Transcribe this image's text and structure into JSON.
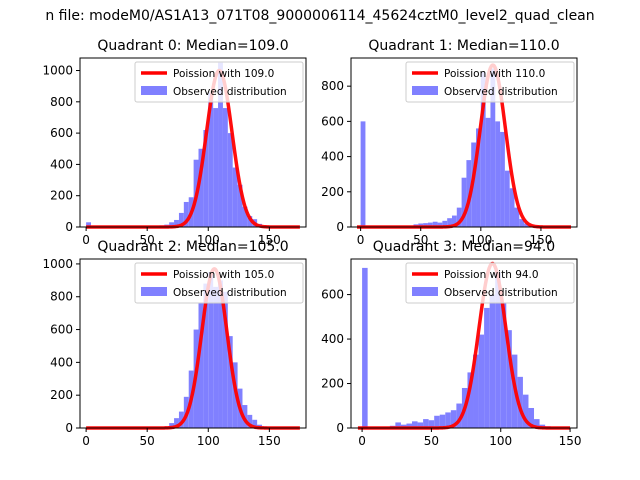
{
  "figure": {
    "suptitle": "n file: modeM0/AS1A13_071T08_9000006114_45624cztM0_level2_quad_clean"
  },
  "colors": {
    "poisson_line": "#ff0000",
    "histogram": "#8080ff"
  },
  "chart_data": [
    {
      "type": "bar",
      "title": "Quadrant 0: Median=109.0",
      "median": 109.0,
      "xlim": [
        -5,
        180
      ],
      "ylim": [
        0,
        1080
      ],
      "xticks": [
        0,
        50,
        100,
        150
      ],
      "yticks": [
        0,
        200,
        400,
        600,
        800,
        1000
      ],
      "legend": {
        "placement": "upper right",
        "entries": [
          "Poission with 109.0",
          "Observed distribution"
        ]
      },
      "series": [
        {
          "name": "Poission with 109.0",
          "kind": "line",
          "mean": 109.0,
          "peak": 1000
        },
        {
          "name": "Observed distribution",
          "kind": "histogram",
          "bin_width": 4,
          "bins": [
            [
              0,
              30
            ],
            [
              60,
              10
            ],
            [
              64,
              15
            ],
            [
              68,
              30
            ],
            [
              72,
              45
            ],
            [
              76,
              90
            ],
            [
              80,
              160
            ],
            [
              84,
              190
            ],
            [
              88,
              430
            ],
            [
              92,
              500
            ],
            [
              96,
              620
            ],
            [
              100,
              860
            ],
            [
              104,
              760
            ],
            [
              108,
              1050
            ],
            [
              112,
              760
            ],
            [
              116,
              600
            ],
            [
              120,
              380
            ],
            [
              124,
              270
            ],
            [
              128,
              130
            ],
            [
              132,
              70
            ],
            [
              136,
              50
            ],
            [
              140,
              20
            ],
            [
              144,
              10
            ],
            [
              148,
              5
            ]
          ]
        }
      ]
    },
    {
      "type": "bar",
      "title": "Quadrant 1: Median=110.0",
      "median": 110.0,
      "xlim": [
        -8,
        180
      ],
      "ylim": [
        0,
        960
      ],
      "xticks": [
        0,
        50,
        100,
        150
      ],
      "yticks": [
        0,
        200,
        400,
        600,
        800
      ],
      "legend": {
        "placement": "upper right",
        "entries": [
          "Poission with 110.0",
          "Observed distribution"
        ]
      },
      "series": [
        {
          "name": "Poission with 110.0",
          "kind": "line",
          "mean": 110.0,
          "peak": 920
        },
        {
          "name": "Observed distribution",
          "kind": "histogram",
          "bin_width": 4,
          "bins": [
            [
              0,
              600
            ],
            [
              44,
              15
            ],
            [
              48,
              20
            ],
            [
              52,
              22
            ],
            [
              56,
              25
            ],
            [
              60,
              30
            ],
            [
              64,
              25
            ],
            [
              68,
              35
            ],
            [
              72,
              50
            ],
            [
              76,
              65
            ],
            [
              80,
              110
            ],
            [
              84,
              280
            ],
            [
              88,
              380
            ],
            [
              92,
              480
            ],
            [
              96,
              560
            ],
            [
              100,
              880
            ],
            [
              104,
              620
            ],
            [
              108,
              900
            ],
            [
              112,
              600
            ],
            [
              116,
              540
            ],
            [
              120,
              320
            ],
            [
              124,
              220
            ],
            [
              128,
              110
            ],
            [
              132,
              45
            ],
            [
              136,
              20
            ],
            [
              140,
              10
            ]
          ]
        }
      ]
    },
    {
      "type": "bar",
      "title": "Quadrant 2: Median=105.0",
      "median": 105.0,
      "xlim": [
        -5,
        180
      ],
      "ylim": [
        0,
        1030
      ],
      "xticks": [
        0,
        50,
        100,
        150
      ],
      "yticks": [
        0,
        200,
        400,
        600,
        800,
        1000
      ],
      "legend": {
        "placement": "upper right",
        "entries": [
          "Poission with 105.0",
          "Observed distribution"
        ]
      },
      "series": [
        {
          "name": "Poission with 105.0",
          "kind": "line",
          "mean": 105.0,
          "peak": 970
        },
        {
          "name": "Observed distribution",
          "kind": "histogram",
          "bin_width": 4,
          "bins": [
            [
              64,
              10
            ],
            [
              68,
              30
            ],
            [
              72,
              60
            ],
            [
              76,
              100
            ],
            [
              80,
              190
            ],
            [
              84,
              350
            ],
            [
              88,
              600
            ],
            [
              92,
              760
            ],
            [
              96,
              880
            ],
            [
              100,
              950
            ],
            [
              104,
              860
            ],
            [
              108,
              900
            ],
            [
              112,
              830
            ],
            [
              116,
              560
            ],
            [
              120,
              400
            ],
            [
              124,
              240
            ],
            [
              128,
              140
            ],
            [
              132,
              80
            ],
            [
              136,
              50
            ],
            [
              140,
              20
            ],
            [
              144,
              10
            ]
          ]
        }
      ]
    },
    {
      "type": "bar",
      "title": "Quadrant 3: Median=94.0",
      "median": 94.0,
      "xlim": [
        -8,
        155
      ],
      "ylim": [
        0,
        760
      ],
      "xticks": [
        0,
        50,
        100,
        150
      ],
      "yticks": [
        0,
        200,
        400,
        600
      ],
      "legend": {
        "placement": "upper right",
        "entries": [
          "Poission with 94.0",
          "Observed distribution"
        ]
      },
      "series": [
        {
          "name": "Poission with 94.0",
          "kind": "line",
          "mean": 94.0,
          "peak": 740
        },
        {
          "name": "Observed distribution",
          "kind": "histogram",
          "bin_width": 4,
          "bins": [
            [
              0,
              720
            ],
            [
              20,
              10
            ],
            [
              24,
              25
            ],
            [
              28,
              15
            ],
            [
              32,
              20
            ],
            [
              36,
              30
            ],
            [
              40,
              25
            ],
            [
              44,
              40
            ],
            [
              48,
              35
            ],
            [
              52,
              55
            ],
            [
              56,
              60
            ],
            [
              60,
              70
            ],
            [
              64,
              80
            ],
            [
              68,
              110
            ],
            [
              72,
              180
            ],
            [
              76,
              250
            ],
            [
              80,
              330
            ],
            [
              84,
              420
            ],
            [
              88,
              540
            ],
            [
              92,
              600
            ],
            [
              96,
              700
            ],
            [
              100,
              560
            ],
            [
              104,
              440
            ],
            [
              108,
              330
            ],
            [
              112,
              230
            ],
            [
              116,
              150
            ],
            [
              120,
              90
            ],
            [
              124,
              40
            ],
            [
              128,
              15
            ],
            [
              132,
              8
            ]
          ]
        }
      ]
    }
  ]
}
